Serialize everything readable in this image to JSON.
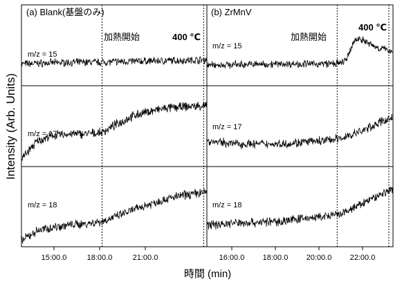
{
  "figure": {
    "ylabel": "Intensity (Arb. Units)",
    "xlabel": "時間 (min)"
  },
  "chart_data": [
    {
      "type": "line",
      "panel_title": "(a) Blank(基盤のみ)",
      "xlabel": "時間 (min)",
      "ylabel": "Intensity (Arb. Units)",
      "x_ticks": [
        "15:00.0",
        "18:00.0",
        "21:00.0"
      ],
      "xlim": [
        14.0,
        25.5
      ],
      "annotations": {
        "heating_start": {
          "label": "加熱開始",
          "x": 19.0
        },
        "temp_reached": {
          "label": "400 ℃",
          "x": 25.3
        }
      },
      "series": [
        {
          "name": "m/z = 15",
          "x": [
            14.0,
            16.0,
            18.0,
            19.0,
            20.0,
            22.0,
            24.0,
            25.5
          ],
          "y": [
            0.3,
            0.32,
            0.33,
            0.33,
            0.34,
            0.35,
            0.36,
            0.37
          ]
        },
        {
          "name": "m/z = 17",
          "x": [
            14.0,
            14.5,
            15.0,
            16.0,
            17.0,
            18.0,
            19.0,
            20.0,
            21.0,
            22.0,
            23.0,
            24.0,
            25.5
          ],
          "y": [
            0.05,
            0.18,
            0.3,
            0.38,
            0.4,
            0.4,
            0.42,
            0.55,
            0.66,
            0.72,
            0.76,
            0.78,
            0.8
          ]
        },
        {
          "name": "m/z = 18",
          "x": [
            14.0,
            14.5,
            15.0,
            16.0,
            17.0,
            18.0,
            19.0,
            20.0,
            21.0,
            22.0,
            23.0,
            24.0,
            25.5
          ],
          "y": [
            0.02,
            0.1,
            0.17,
            0.22,
            0.25,
            0.27,
            0.3,
            0.38,
            0.47,
            0.55,
            0.62,
            0.67,
            0.72
          ]
        }
      ]
    },
    {
      "type": "line",
      "panel_title": "(b) ZrMnV",
      "xlabel": "時間 (min)",
      "ylabel": "Intensity (Arb. Units)",
      "x_ticks": [
        "16:00.0",
        "18:00.0",
        "20:00.0",
        "22:00.0"
      ],
      "xlim": [
        14.5,
        23.5
      ],
      "annotations": {
        "heating_start": {
          "label": "加熱開始",
          "x": 20.8
        },
        "temp_reached": {
          "label": "400 ℃",
          "x": 23.3
        }
      },
      "series": [
        {
          "name": "m/z = 15",
          "x": [
            14.5,
            16.0,
            18.0,
            20.0,
            21.0,
            21.3,
            21.6,
            21.9,
            22.3,
            22.8,
            23.5
          ],
          "y": [
            0.28,
            0.29,
            0.3,
            0.3,
            0.31,
            0.4,
            0.68,
            0.74,
            0.65,
            0.57,
            0.52
          ]
        },
        {
          "name": "m/z = 17",
          "x": [
            14.5,
            16.0,
            18.0,
            20.0,
            21.0,
            22.0,
            23.0,
            23.5
          ],
          "y": [
            0.3,
            0.26,
            0.26,
            0.3,
            0.34,
            0.44,
            0.58,
            0.63
          ]
        },
        {
          "name": "m/z = 18",
          "x": [
            14.5,
            16.0,
            18.0,
            19.0,
            20.0,
            21.0,
            22.0,
            23.0,
            23.5
          ],
          "y": [
            0.25,
            0.28,
            0.3,
            0.34,
            0.36,
            0.4,
            0.55,
            0.7,
            0.76
          ]
        }
      ]
    }
  ]
}
